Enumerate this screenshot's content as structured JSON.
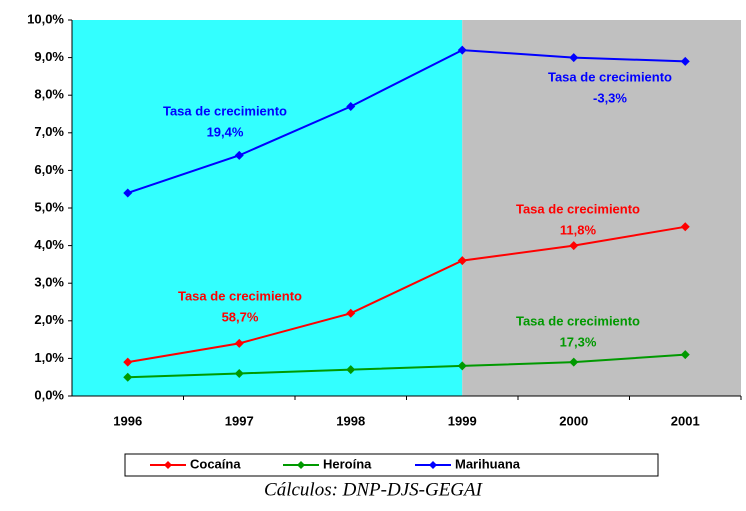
{
  "chart_data": {
    "type": "line",
    "categories": [
      "1996",
      "1997",
      "1998",
      "1999",
      "2000",
      "2001"
    ],
    "series": [
      {
        "name": "Cocaína",
        "color": "#ff0000",
        "values": [
          0.9,
          1.4,
          2.2,
          3.6,
          4.0,
          4.5
        ]
      },
      {
        "name": "Heroína",
        "color": "#009900",
        "values": [
          0.5,
          0.6,
          0.7,
          0.8,
          0.9,
          1.1
        ]
      },
      {
        "name": "Marihuana",
        "color": "#0000ff",
        "values": [
          5.4,
          6.4,
          7.7,
          9.2,
          9.0,
          8.9
        ]
      }
    ],
    "ylim": [
      0,
      10
    ],
    "yticks": [
      {
        "value": 0,
        "label": "0,0%"
      },
      {
        "value": 1,
        "label": "1,0%"
      },
      {
        "value": 2,
        "label": "2,0%"
      },
      {
        "value": 3,
        "label": "3,0%"
      },
      {
        "value": 4,
        "label": "4,0%"
      },
      {
        "value": 5,
        "label": "5,0%"
      },
      {
        "value": 6,
        "label": "6,0%"
      },
      {
        "value": 7,
        "label": "7,0%"
      },
      {
        "value": 8,
        "label": "8,0%"
      },
      {
        "value": 9,
        "label": "9,0%"
      },
      {
        "value": 10,
        "label": "10,0%"
      }
    ],
    "grid": false,
    "legend": "bottom",
    "annotations": [
      {
        "text": "Tasa de crecimiento",
        "rate": "19,4%",
        "color": "#0000ff"
      },
      {
        "text": "Tasa de crecimiento",
        "rate": "-3,3%",
        "color": "#0000ff"
      },
      {
        "text": "Tasa de crecimiento",
        "rate": "58,7%",
        "color": "#ff0000"
      },
      {
        "text": "Tasa de crecimiento",
        "rate": "11,8%",
        "color": "#ff0000"
      },
      {
        "text": "Tasa de crecimiento",
        "rate": "17,3%",
        "color": "#009900"
      }
    ],
    "source": "Cálculos: DNP-DJS-GEGAI"
  }
}
